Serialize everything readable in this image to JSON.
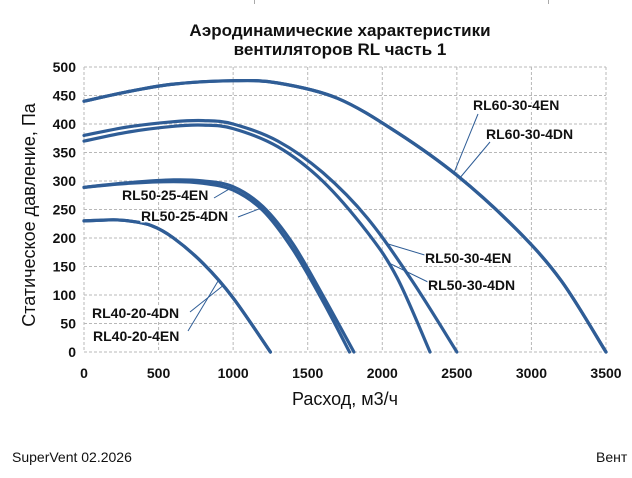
{
  "chart_data": {
    "type": "line",
    "title_line1": "Аэродинамические характеристики",
    "title_line2": "вентиляторов RL часть 1",
    "xlabel": "Расход, м3/ч",
    "ylabel": "Статическое давление, Па",
    "xlim": [
      0,
      3500
    ],
    "ylim": [
      0,
      500
    ],
    "xticks": [
      0,
      500,
      1000,
      1500,
      2000,
      2500,
      3000,
      3500
    ],
    "yticks": [
      0,
      50,
      100,
      150,
      200,
      250,
      300,
      350,
      400,
      450,
      500
    ],
    "grid": true,
    "line_color": "#2f5d96",
    "series": [
      {
        "name": "RL60-30-4EN",
        "x": [
          0,
          300,
          600,
          1000,
          1300,
          1700,
          2100,
          2500,
          2900,
          3200,
          3500
        ],
        "y": [
          440,
          457,
          470,
          476,
          472,
          445,
          385,
          310,
          215,
          125,
          0
        ]
      },
      {
        "name": "RL60-30-4DN",
        "x": [
          0,
          300,
          600,
          1000,
          1300,
          1700,
          2100,
          2500,
          2900,
          3200,
          3500
        ],
        "y": [
          440,
          457,
          470,
          476,
          472,
          445,
          385,
          310,
          215,
          125,
          0
        ]
      },
      {
        "name": "RL50-30-4EN",
        "x": [
          0,
          300,
          600,
          800,
          1000,
          1300,
          1600,
          1900,
          2200,
          2500
        ],
        "y": [
          380,
          395,
          404,
          406,
          400,
          370,
          315,
          235,
          125,
          0
        ]
      },
      {
        "name": "RL50-30-4DN",
        "x": [
          0,
          300,
          600,
          800,
          1000,
          1300,
          1600,
          1900,
          2100,
          2320
        ],
        "y": [
          370,
          386,
          396,
          398,
          392,
          360,
          300,
          210,
          130,
          0
        ]
      },
      {
        "name": "RL50-25-4EN",
        "x": [
          0,
          300,
          600,
          800,
          1000,
          1200,
          1400,
          1600,
          1810
        ],
        "y": [
          289,
          297,
          302,
          300,
          290,
          255,
          190,
          100,
          0
        ]
      },
      {
        "name": "RL50-25-4DN",
        "x": [
          0,
          300,
          600,
          800,
          1000,
          1200,
          1400,
          1600,
          1780
        ],
        "y": [
          289,
          296,
          299,
          296,
          284,
          248,
          180,
          90,
          0
        ]
      },
      {
        "name": "RL40-20-4DN",
        "x": [
          0,
          100,
          200,
          300,
          450,
          600,
          800,
          1000,
          1250
        ],
        "y": [
          230,
          231,
          232,
          230,
          222,
          200,
          155,
          95,
          0
        ]
      },
      {
        "name": "RL40-20-4EN",
        "x": [
          0,
          100,
          200,
          300,
          450,
          600,
          800,
          1000,
          1250
        ],
        "y": [
          230,
          231,
          232,
          230,
          222,
          200,
          155,
          95,
          0
        ]
      }
    ],
    "annotations": [
      {
        "text": "RL60-30-4EN",
        "series": 0,
        "at_x": 2480
      },
      {
        "text": "RL60-30-4DN",
        "series": 1,
        "at_x": 2520
      },
      {
        "text": "RL50-30-4EN",
        "series": 2,
        "at_x": 2020
      },
      {
        "text": "RL50-30-4DN",
        "series": 3,
        "at_x": 2030
      },
      {
        "text": "RL50-25-4EN",
        "series": 4,
        "at_x": 1000
      },
      {
        "text": "RL50-25-4DN",
        "series": 5,
        "at_x": 1180
      },
      {
        "text": "RL40-20-4DN",
        "series": 6,
        "at_x": 930
      },
      {
        "text": "RL40-20-4EN",
        "series": 7,
        "at_x": 900
      }
    ]
  },
  "footer": {
    "left_text": "SuperVent 02.2026",
    "right_text": "Вент"
  }
}
